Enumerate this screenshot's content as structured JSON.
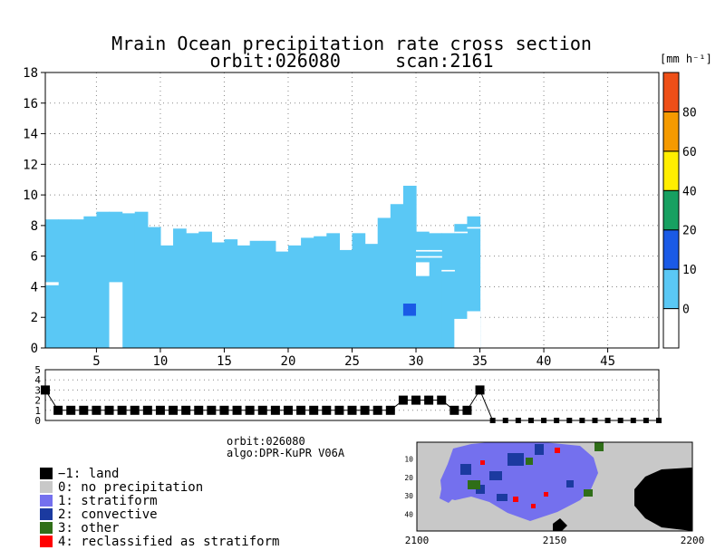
{
  "title": "Mrain Ocean precipitation rate cross section",
  "subtitle": "orbit:026080     scan:2161",
  "chart_data": [
    {
      "type": "bar",
      "title": "Mrain Ocean precipitation rate cross section",
      "subtitle": "orbit:026080     scan:2161",
      "xlim": [
        1,
        49
      ],
      "ylim": [
        0,
        18
      ],
      "x_ticks": [
        5,
        10,
        15,
        20,
        25,
        30,
        35,
        40,
        45
      ],
      "y_ticks": [
        0,
        2,
        4,
        6,
        8,
        10,
        12,
        14,
        16,
        18
      ],
      "grid": true,
      "columns": [
        {
          "x": 1,
          "top": 8.4,
          "gaps": [
            [
              4.1,
              4.3
            ]
          ]
        },
        {
          "x": 2,
          "top": 8.4,
          "gaps": []
        },
        {
          "x": 3,
          "top": 8.4,
          "gaps": []
        },
        {
          "x": 4,
          "top": 8.6,
          "gaps": []
        },
        {
          "x": 5,
          "top": 8.9,
          "gaps": []
        },
        {
          "x": 6,
          "top": 8.9,
          "gaps": [
            [
              0,
              4.3
            ]
          ]
        },
        {
          "x": 7,
          "top": 8.8,
          "gaps": []
        },
        {
          "x": 8,
          "top": 8.9,
          "gaps": []
        },
        {
          "x": 9,
          "top": 7.9,
          "gaps": []
        },
        {
          "x": 10,
          "top": 6.7,
          "gaps": []
        },
        {
          "x": 11,
          "top": 7.8,
          "gaps": []
        },
        {
          "x": 12,
          "top": 7.5,
          "gaps": []
        },
        {
          "x": 13,
          "top": 7.6,
          "gaps": []
        },
        {
          "x": 14,
          "top": 6.9,
          "gaps": []
        },
        {
          "x": 15,
          "top": 7.1,
          "gaps": []
        },
        {
          "x": 16,
          "top": 6.7,
          "gaps": []
        },
        {
          "x": 17,
          "top": 7.0,
          "gaps": []
        },
        {
          "x": 18,
          "top": 7.0,
          "gaps": []
        },
        {
          "x": 19,
          "top": 6.3,
          "gaps": []
        },
        {
          "x": 20,
          "top": 6.7,
          "gaps": []
        },
        {
          "x": 21,
          "top": 7.2,
          "gaps": []
        },
        {
          "x": 22,
          "top": 7.3,
          "gaps": []
        },
        {
          "x": 23,
          "top": 7.5,
          "gaps": []
        },
        {
          "x": 24,
          "top": 6.4,
          "gaps": []
        },
        {
          "x": 25,
          "top": 7.5,
          "gaps": []
        },
        {
          "x": 26,
          "top": 6.8,
          "gaps": []
        },
        {
          "x": 27,
          "top": 8.5,
          "gaps": []
        },
        {
          "x": 28,
          "top": 9.4,
          "gaps": []
        },
        {
          "x": 29,
          "top": 10.6,
          "gaps": []
        },
        {
          "x": 30,
          "top": 7.6,
          "gaps": [
            [
              6.3,
              6.4
            ],
            [
              5.9,
              6.0
            ],
            [
              4.7,
              5.6
            ]
          ]
        },
        {
          "x": 31,
          "top": 7.5,
          "gaps": [
            [
              6.3,
              6.4
            ],
            [
              5.9,
              6.0
            ]
          ]
        },
        {
          "x": 32,
          "top": 7.5,
          "gaps": [
            [
              5.0,
              5.1
            ]
          ]
        },
        {
          "x": 33,
          "top": 8.1,
          "gaps": [
            [
              7.5,
              7.6
            ],
            [
              0,
              1.9
            ]
          ]
        },
        {
          "x": 34,
          "top": 8.6,
          "gaps": [
            [
              7.8,
              7.9
            ],
            [
              0,
              2.4
            ]
          ]
        }
      ],
      "convective_cells": [
        {
          "x": 29,
          "y_bottom": 2.1,
          "y_top": 2.9
        }
      ],
      "colorbar": {
        "unit": "[mm h⁻¹]",
        "labels": [
          "0",
          "10",
          "20",
          "40",
          "60",
          "80"
        ],
        "colors": [
          "#ffffff",
          "#5ac8f5",
          "#1a5ae6",
          "#17a061",
          "#ffee00",
          "#f59a00",
          "#ee4f17"
        ]
      }
    },
    {
      "type": "scatter",
      "title": "",
      "xlim": [
        1,
        49
      ],
      "ylim": [
        0,
        5
      ],
      "y_ticks": [
        0,
        1,
        2,
        3,
        4,
        5
      ],
      "grid": true,
      "flags": [
        3,
        1,
        1,
        1,
        1,
        1,
        1,
        1,
        1,
        1,
        1,
        1,
        1,
        1,
        1,
        1,
        1,
        1,
        1,
        1,
        1,
        1,
        1,
        1,
        1,
        1,
        1,
        1,
        2,
        2,
        2,
        2,
        1,
        1,
        3,
        0,
        0,
        0,
        0,
        0,
        0,
        0,
        0,
        0,
        0,
        0,
        0,
        0,
        0
      ]
    },
    {
      "type": "heatmap",
      "title": "",
      "x_ticks": [
        2100,
        2150,
        2200
      ],
      "y_ticks": [
        10,
        20,
        30,
        40
      ],
      "xlim": [
        2100,
        2200
      ],
      "ylim": [
        1,
        49
      ]
    }
  ],
  "info": {
    "orbit": "orbit:026080",
    "algo": "algo:DPR-KuPR V06A"
  },
  "legend": [
    {
      "label": "−1: land",
      "color": "#000000"
    },
    {
      "label": "0: no precipitation",
      "color": "#c8c8c8"
    },
    {
      "label": "1: stratiform",
      "color": "#7470ee"
    },
    {
      "label": "2: convective",
      "color": "#1b3aa0"
    },
    {
      "label": "3: other",
      "color": "#2f6e18"
    },
    {
      "label": "4: reclassified as stratiform",
      "color": "#ff0000"
    }
  ],
  "colors": {
    "rain": "#5ac8f5",
    "convective_cell": "#1a5ae6",
    "flag_marker": "#000000"
  }
}
